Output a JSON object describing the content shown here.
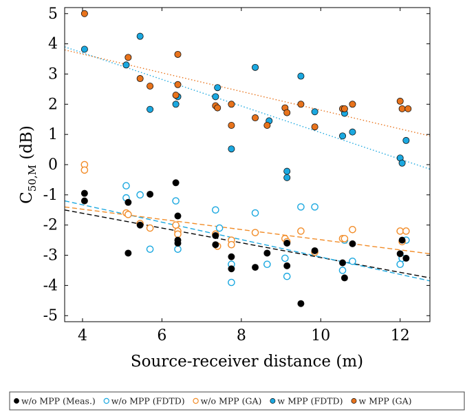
{
  "chart_data": {
    "type": "scatter",
    "xlabel": "Source-receiver distance (m)",
    "ylabel_main": "C",
    "ylabel_sub": "50,M",
    "ylabel_unit": " (dB)",
    "xlim": [
      3.55,
      12.75
    ],
    "ylim": [
      -5.2,
      5.2
    ],
    "xticks": [
      4,
      6,
      8,
      10,
      12
    ],
    "yticks": [
      -5,
      -4,
      -3,
      -2,
      -1,
      0,
      1,
      2,
      3,
      4,
      5
    ],
    "grid": false,
    "legend_position": "bottom",
    "series": [
      {
        "name": "w/o MPP (Meas.)",
        "color": "#000000",
        "marker": "filled",
        "trend_style": "dashed",
        "trend": [
          [
            3.55,
            -1.5
          ],
          [
            12.75,
            -3.75
          ]
        ],
        "points": [
          [
            4.05,
            -0.95
          ],
          [
            4.05,
            -1.2
          ],
          [
            5.15,
            -1.25
          ],
          [
            5.15,
            -2.93
          ],
          [
            5.45,
            -2.0
          ],
          [
            5.7,
            -0.98
          ],
          [
            6.35,
            -0.6
          ],
          [
            6.4,
            -1.7
          ],
          [
            6.4,
            -2.5
          ],
          [
            6.4,
            -2.6
          ],
          [
            7.35,
            -2.35
          ],
          [
            7.35,
            -2.65
          ],
          [
            7.75,
            -3.05
          ],
          [
            7.75,
            -3.45
          ],
          [
            8.35,
            -3.4
          ],
          [
            8.65,
            -2.93
          ],
          [
            9.15,
            -2.6
          ],
          [
            9.15,
            -3.35
          ],
          [
            9.5,
            -4.6
          ],
          [
            9.85,
            -2.85
          ],
          [
            10.55,
            -3.25
          ],
          [
            10.6,
            -3.75
          ],
          [
            10.8,
            -2.62
          ],
          [
            12.0,
            -2.95
          ],
          [
            12.05,
            -2.5
          ],
          [
            12.15,
            -3.1
          ]
        ]
      },
      {
        "name": "w/o MPP (FDTD)",
        "color": "#1ba8e0",
        "marker": "open",
        "trend_style": "dashed",
        "trend": [
          [
            3.55,
            -1.2
          ],
          [
            12.75,
            -3.85
          ]
        ],
        "points": [
          [
            5.1,
            -0.7
          ],
          [
            5.1,
            -1.1
          ],
          [
            5.45,
            -1.0
          ],
          [
            5.7,
            -2.8
          ],
          [
            6.35,
            -1.2
          ],
          [
            6.4,
            -2.8
          ],
          [
            7.35,
            -1.5
          ],
          [
            7.45,
            -2.1
          ],
          [
            7.75,
            -3.3
          ],
          [
            7.75,
            -3.9
          ],
          [
            8.35,
            -1.6
          ],
          [
            8.65,
            -3.3
          ],
          [
            9.1,
            -3.1
          ],
          [
            9.15,
            -3.7
          ],
          [
            9.5,
            -1.4
          ],
          [
            9.85,
            -1.4
          ],
          [
            10.55,
            -3.5
          ],
          [
            10.6,
            -2.5
          ],
          [
            10.8,
            -3.2
          ],
          [
            12.0,
            -3.3
          ],
          [
            12.05,
            -3.1
          ],
          [
            12.15,
            -2.5
          ]
        ]
      },
      {
        "name": "w/o MPP (GA)",
        "color": "#f28c28",
        "marker": "open",
        "trend_style": "dashed",
        "trend": [
          [
            3.55,
            -1.4
          ],
          [
            12.75,
            -2.95
          ]
        ],
        "points": [
          [
            4.05,
            0.0
          ],
          [
            4.05,
            -0.18
          ],
          [
            5.1,
            -1.6
          ],
          [
            5.15,
            -1.65
          ],
          [
            5.45,
            -1.95
          ],
          [
            5.7,
            -2.1
          ],
          [
            6.35,
            -2.0
          ],
          [
            6.4,
            -2.2
          ],
          [
            6.4,
            -2.3
          ],
          [
            7.35,
            -2.3
          ],
          [
            7.4,
            -2.7
          ],
          [
            7.75,
            -2.5
          ],
          [
            7.75,
            -2.65
          ],
          [
            8.35,
            -2.25
          ],
          [
            9.1,
            -2.45
          ],
          [
            9.15,
            -2.55
          ],
          [
            9.5,
            -2.2
          ],
          [
            9.85,
            -2.9
          ],
          [
            10.55,
            -2.45
          ],
          [
            10.6,
            -2.45
          ],
          [
            10.8,
            -2.15
          ],
          [
            12.0,
            -2.2
          ],
          [
            12.05,
            -2.55
          ],
          [
            12.15,
            -2.2
          ]
        ]
      },
      {
        "name": "w MPP (FDTD)",
        "color": "#1ba8e0",
        "marker": "filled",
        "trend_style": "dotted",
        "trend": [
          [
            3.55,
            3.9
          ],
          [
            12.75,
            -0.15
          ]
        ],
        "points": [
          [
            4.05,
            3.82
          ],
          [
            5.1,
            3.3
          ],
          [
            5.45,
            4.25
          ],
          [
            5.7,
            1.83
          ],
          [
            6.35,
            2.0
          ],
          [
            6.4,
            2.25
          ],
          [
            7.35,
            2.25
          ],
          [
            7.4,
            2.55
          ],
          [
            7.75,
            0.52
          ],
          [
            8.35,
            3.22
          ],
          [
            8.7,
            1.45
          ],
          [
            9.15,
            -0.22
          ],
          [
            9.15,
            -0.43
          ],
          [
            9.5,
            2.93
          ],
          [
            9.85,
            1.75
          ],
          [
            10.55,
            0.95
          ],
          [
            10.6,
            1.7
          ],
          [
            10.8,
            1.08
          ],
          [
            12.0,
            0.22
          ],
          [
            12.05,
            0.05
          ],
          [
            12.15,
            0.8
          ]
        ]
      },
      {
        "name": "w MPP (GA)",
        "color": "#e8731c",
        "marker": "filled",
        "trend_style": "dotted",
        "trend": [
          [
            3.55,
            3.8
          ],
          [
            12.75,
            0.95
          ]
        ],
        "points": [
          [
            4.05,
            5.0
          ],
          [
            5.15,
            3.55
          ],
          [
            5.45,
            2.85
          ],
          [
            5.7,
            2.6
          ],
          [
            6.35,
            2.3
          ],
          [
            6.4,
            3.65
          ],
          [
            6.4,
            2.65
          ],
          [
            7.35,
            1.95
          ],
          [
            7.4,
            1.88
          ],
          [
            7.75,
            2.0
          ],
          [
            7.75,
            1.3
          ],
          [
            8.35,
            1.55
          ],
          [
            8.65,
            1.3
          ],
          [
            9.1,
            1.88
          ],
          [
            9.15,
            1.72
          ],
          [
            9.5,
            2.0
          ],
          [
            9.85,
            1.25
          ],
          [
            10.55,
            1.85
          ],
          [
            10.6,
            1.85
          ],
          [
            10.8,
            2.0
          ],
          [
            12.0,
            2.1
          ],
          [
            12.05,
            1.85
          ],
          [
            12.2,
            1.85
          ]
        ]
      }
    ]
  }
}
